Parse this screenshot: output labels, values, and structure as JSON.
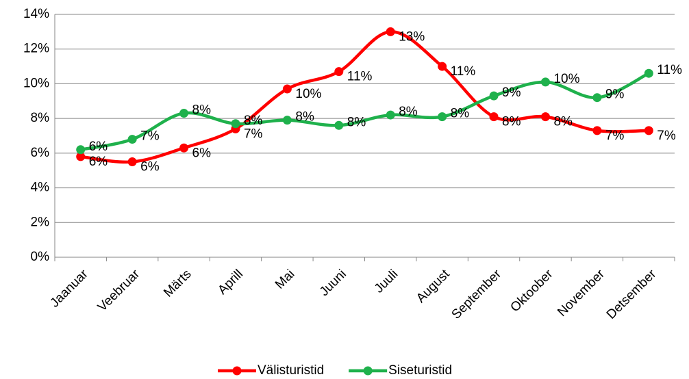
{
  "chart_data": {
    "type": "line",
    "categories": [
      "Jaanuar",
      "Veebruar",
      "Märts",
      "Aprill",
      "Mai",
      "Juuni",
      "Juuli",
      "August",
      "September",
      "Oktoober",
      "November",
      "Detsember"
    ],
    "series": [
      {
        "name": "Välisturistid",
        "color": "#ff0000",
        "values": [
          5.8,
          5.5,
          6.3,
          7.4,
          9.7,
          10.7,
          13.0,
          11.0,
          8.1,
          8.1,
          7.3,
          7.3
        ],
        "value_labels": [
          "6%",
          "6%",
          "6%",
          "7%",
          "10%",
          "11%",
          "13%",
          "11%",
          "8%",
          "8%",
          "7%",
          "7%"
        ]
      },
      {
        "name": "Siseturistid",
        "color": "#1fb14c",
        "values": [
          6.2,
          6.8,
          8.3,
          7.7,
          7.9,
          7.6,
          8.2,
          8.1,
          9.3,
          10.1,
          9.2,
          10.6
        ],
        "value_labels": [
          "6%",
          "7%",
          "8%",
          "8%",
          "8%",
          "8%",
          "8%",
          "8%",
          "9%",
          "10%",
          "9%",
          "11%"
        ]
      }
    ],
    "ylim": [
      0,
      14
    ],
    "yticks": [
      {
        "value": 0,
        "label": "0%"
      },
      {
        "value": 2,
        "label": "2%"
      },
      {
        "value": 4,
        "label": "4%"
      },
      {
        "value": 6,
        "label": "6%"
      },
      {
        "value": 8,
        "label": "8%"
      },
      {
        "value": 10,
        "label": "10%"
      },
      {
        "value": 12,
        "label": "12%"
      },
      {
        "value": 14,
        "label": "14%"
      }
    ],
    "grid": true,
    "legend": "bottom",
    "smooth": true
  }
}
